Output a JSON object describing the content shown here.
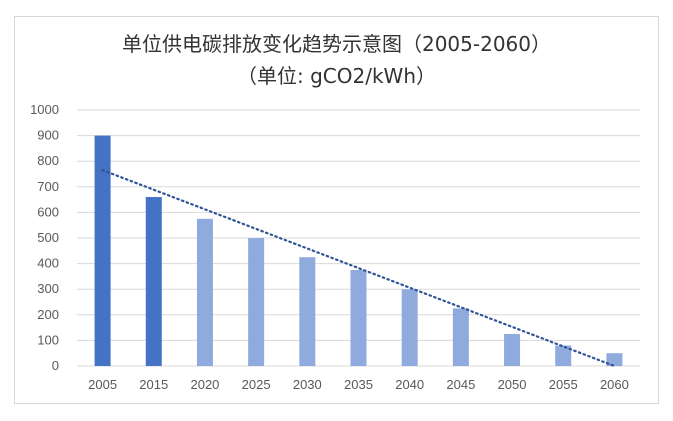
{
  "chart_data": {
    "type": "bar",
    "title": "单位供电碳排放变化趋势示意图（2005-2060）",
    "subtitle": "（单位: gCO2/kWh）",
    "categories": [
      "2005",
      "2015",
      "2020",
      "2025",
      "2030",
      "2035",
      "2040",
      "2045",
      "2050",
      "2055",
      "2060"
    ],
    "values": [
      900,
      660,
      575,
      500,
      425,
      375,
      300,
      225,
      125,
      80,
      50
    ],
    "ylim": [
      0,
      1000
    ],
    "yticks": [
      "0",
      "100",
      "200",
      "300",
      "400",
      "500",
      "600",
      "700",
      "800",
      "900",
      "1000"
    ],
    "grid": true,
    "legend": "none",
    "trendline": {
      "style": "dotted",
      "from_value": 765,
      "to_value": 0
    },
    "colors": {
      "historical": "#4472c4",
      "projected": "#8faadc",
      "trendline": "#2f5597",
      "grid": "#d9d9d9",
      "axis_text": "#595959"
    },
    "historical_count": 2
  }
}
